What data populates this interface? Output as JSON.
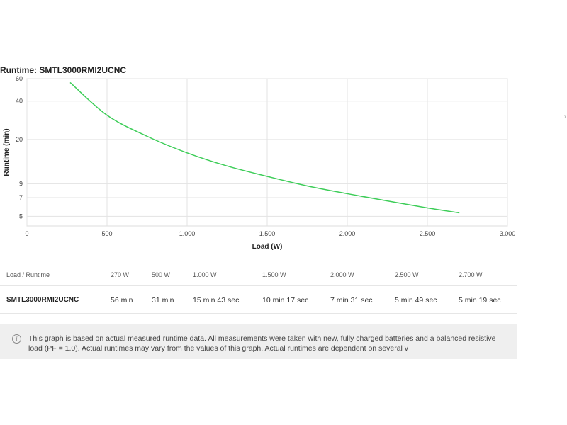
{
  "chart_data": {
    "type": "line",
    "title": "Runtime: SMTL3000RMI2UCNC",
    "xlabel": "Load (W)",
    "ylabel": "Runtime (min)",
    "xlim": [
      0,
      3000
    ],
    "ylim": [
      4.2,
      60
    ],
    "yscale": "log",
    "x_ticks": [
      {
        "value": 0,
        "label": "0"
      },
      {
        "value": 500,
        "label": "500"
      },
      {
        "value": 1000,
        "label": "1.000"
      },
      {
        "value": 1500,
        "label": "1.500"
      },
      {
        "value": 2000,
        "label": "2.000"
      },
      {
        "value": 2500,
        "label": "2.500"
      },
      {
        "value": 3000,
        "label": "3.000"
      }
    ],
    "y_ticks": [
      {
        "value": 5,
        "label": "5"
      },
      {
        "value": 7,
        "label": "7"
      },
      {
        "value": 9,
        "label": "9"
      },
      {
        "value": 20,
        "label": "20"
      },
      {
        "value": 40,
        "label": "40"
      },
      {
        "value": 60,
        "label": "60"
      }
    ],
    "grid": true,
    "line_color": "#3dcd58",
    "series": [
      {
        "x": [
          270,
          500,
          750,
          1000,
          1250,
          1500,
          1750,
          2000,
          2250,
          2500,
          2700
        ],
        "y": [
          56,
          31,
          21.2,
          15.72,
          12.4,
          10.28,
          8.65,
          7.52,
          6.6,
          5.82,
          5.32
        ]
      }
    ]
  },
  "table": {
    "header_label": "Load / Runtime",
    "loads": [
      "270 W",
      "500 W",
      "1.000 W",
      "1.500 W",
      "2.000 W",
      "2.500 W",
      "2.700 W"
    ],
    "model": "SMTL3000RMI2UCNC",
    "runtimes": [
      "56 min",
      "31 min",
      "15 min 43 sec",
      "10 min 17 sec",
      "7 min 31 sec",
      "5 min 49 sec",
      "5 min 19 sec"
    ]
  },
  "note": {
    "icon": "info-icon",
    "text": "This graph is based on actual measured runtime data. All measurements were taken with new, fully charged batteries and a balanced resistive load (PF = 1.0). Actual runtimes may vary from the values of this graph. Actual runtimes are dependent on several v"
  }
}
